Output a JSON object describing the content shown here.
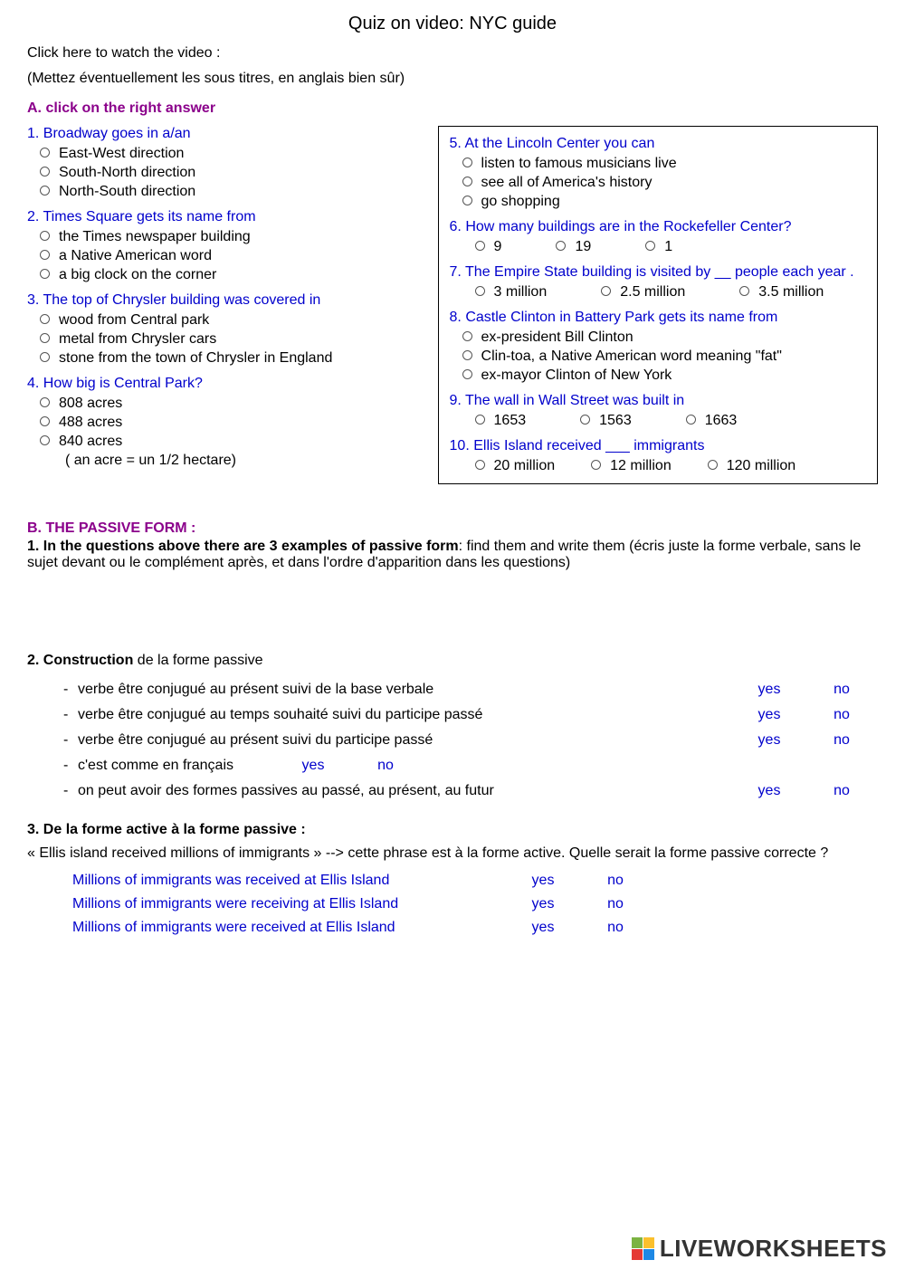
{
  "title": "Quiz on video: NYC guide",
  "intro1": "Click here to watch the video :",
  "intro2": "(Mettez éventuellement les sous titres, en anglais bien sûr)",
  "sectionA": "A.  click on the right answer",
  "q1": {
    "stem": "1. Broadway goes in a/an",
    "opts": [
      "East-West direction",
      "South-North direction",
      "North-South direction"
    ]
  },
  "q2": {
    "stem": "2. Times Square gets its name from",
    "opts": [
      "the Times newspaper building",
      "a Native American word",
      "a big clock on the corner"
    ]
  },
  "q3": {
    "stem": "3. The top of Chrysler building was covered in",
    "opts": [
      "wood from Central park",
      "metal from Chrysler cars",
      "stone from the town of Chrysler in England"
    ]
  },
  "q4": {
    "stem": "4. How big is Central Park?",
    "opts": [
      "808 acres",
      "488 acres",
      "840 acres"
    ],
    "note": "( an acre = un 1/2 hectare)"
  },
  "q5": {
    "stem": "5. At the Lincoln Center you can",
    "opts": [
      "listen to famous musicians live",
      "see all of America's history",
      "go shopping"
    ]
  },
  "q6": {
    "stem": "6. How many buildings are in the Rockefeller Center?",
    "opts": [
      "9",
      "19",
      "1"
    ]
  },
  "q7": {
    "stem": "7. The Empire State building is visited by __ people each year .",
    "opts": [
      "3 million",
      "2.5 million",
      "3.5 million"
    ]
  },
  "q8": {
    "stem": "8. Castle Clinton in Battery Park gets its name from",
    "opts": [
      "ex-president Bill Clinton",
      "Clin-toa, a Native American word meaning \"fat\"",
      "ex-mayor Clinton of New York"
    ]
  },
  "q9": {
    "stem": "9. The wall in Wall Street was built in",
    "opts": [
      "1653",
      "1563",
      "1663"
    ]
  },
  "q10": {
    "stem": "10. Ellis Island received ___ immigrants",
    "opts": [
      "20 million",
      "12 million",
      "120 million"
    ]
  },
  "sectionB": "B.  THE PASSIVE FORM :",
  "b1a": "1. In the questions above there are ",
  "b1b": "3 examples of passive form",
  "b1c": ": find them and write them (écris juste la forme verbale, sans le sujet devant ou le complément après, et dans l'ordre d'apparition dans les questions)",
  "b2head_a": "2. Construction",
  "b2head_b": " de la forme passive",
  "b2rows": [
    "verbe être conjugué au présent suivi de la base verbale",
    "verbe être conjugué au temps souhaité suivi du participe passé",
    "verbe être conjugué au présent suivi du participe passé",
    "c'est comme en français",
    "on peut avoir des formes passives au passé, au présent, au futur"
  ],
  "b3head": "3. De la forme active à la forme passive :",
  "b3intro": "« Ellis island received millions of immigrants » --> cette phrase est à la forme active. Quelle serait la forme passive correcte ?",
  "b3rows": [
    "Millions of immigrants was received at Ellis Island",
    "Millions of immigrants were receiving at Ellis Island",
    "Millions of immigrants were received at Ellis Island"
  ],
  "yes": "yes",
  "no": "no",
  "watermark": "LIVEWORKSHEETS"
}
